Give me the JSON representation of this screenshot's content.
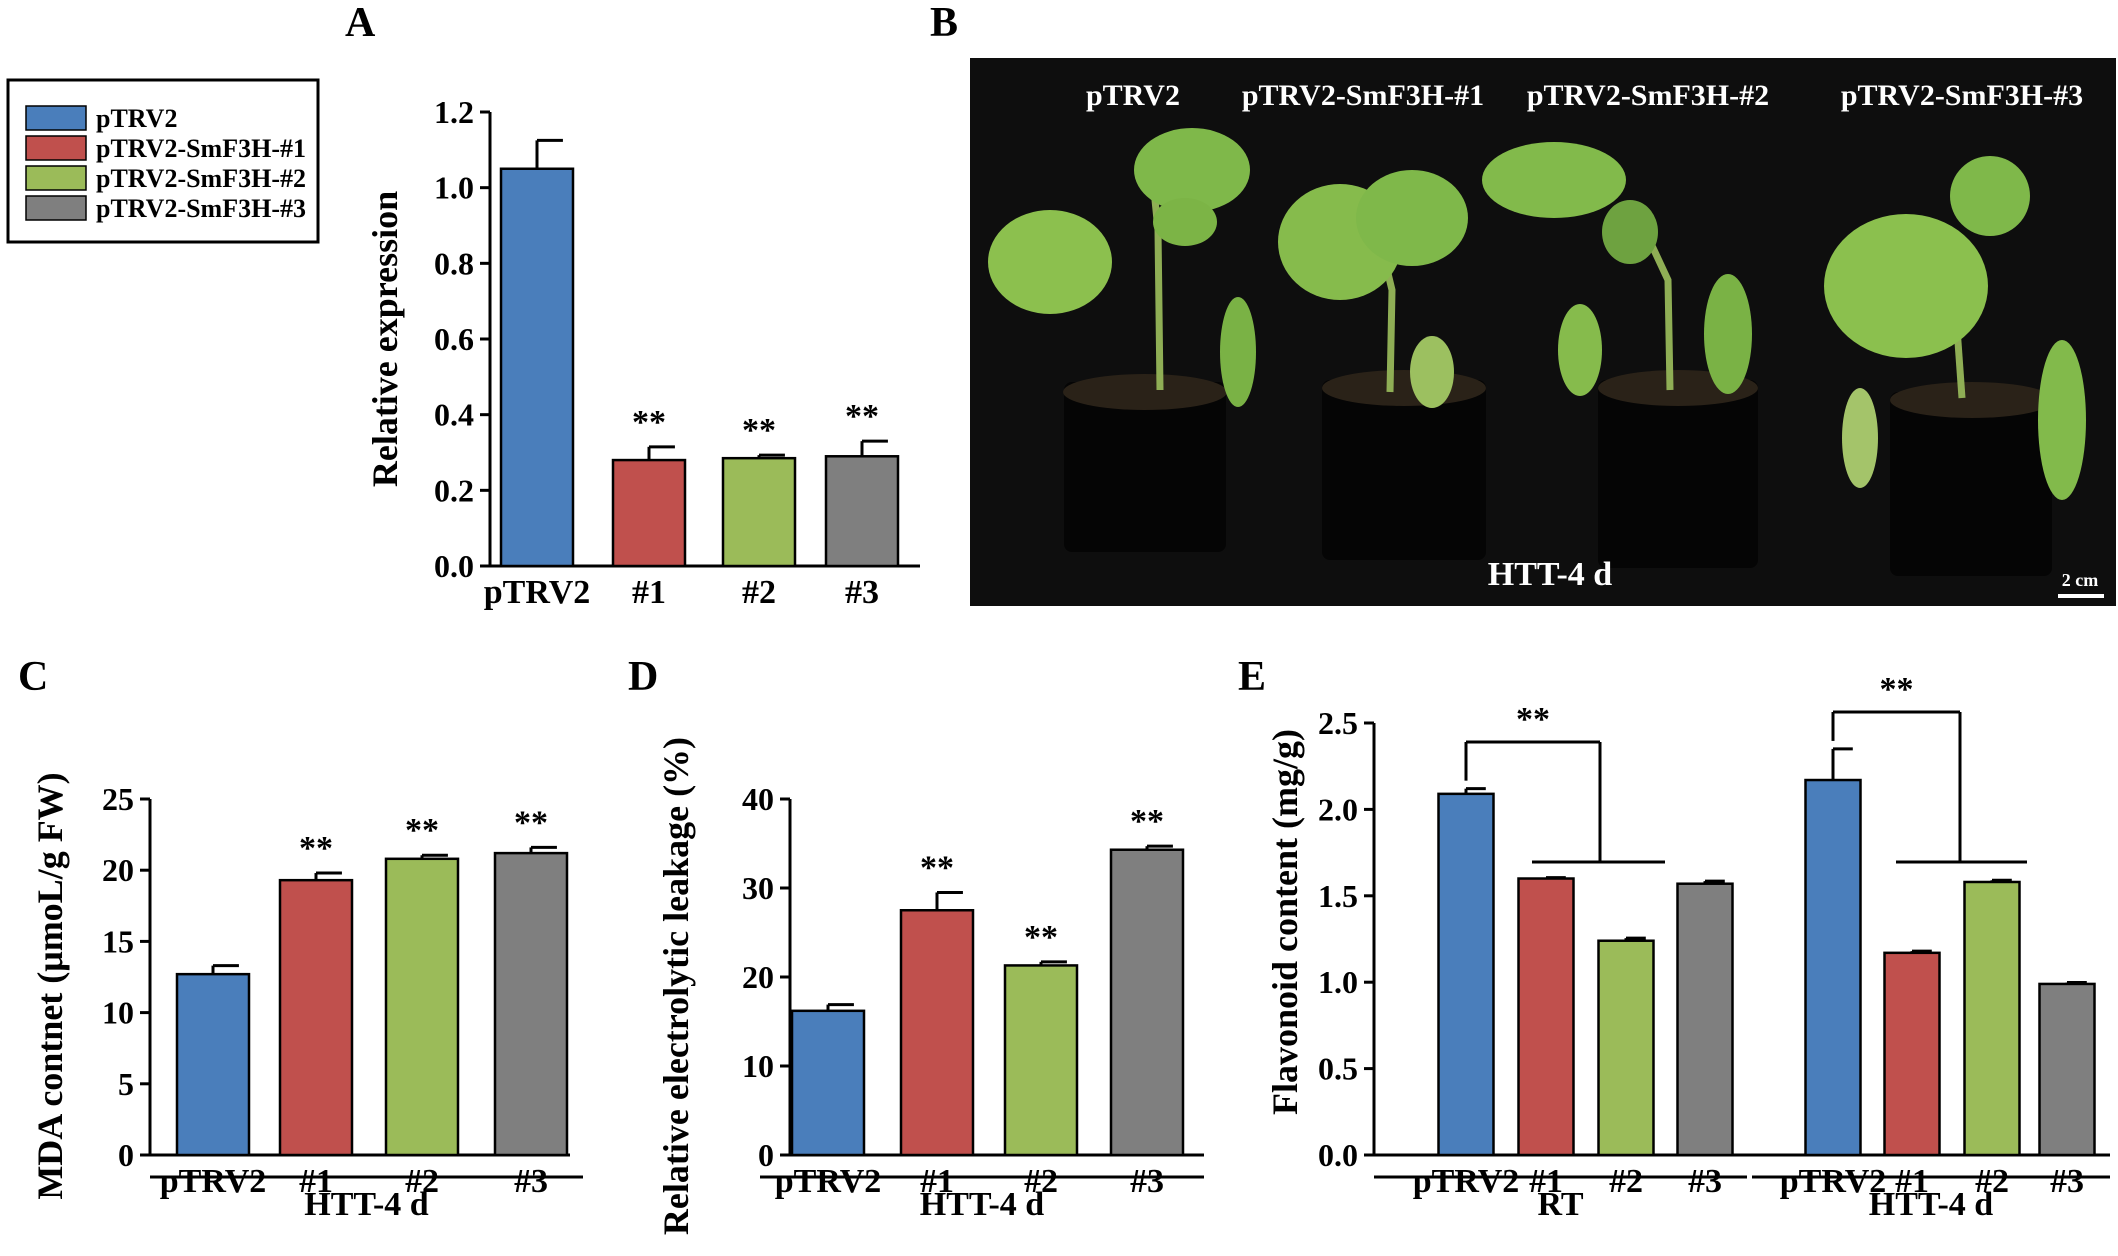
{
  "figure": {
    "legend": {
      "entries": [
        {
          "label": "pTRV2",
          "color": "#4a7ebb"
        },
        {
          "label": "pTRV2-SmF3H-#1",
          "color": "#c0504d"
        },
        {
          "label": "pTRV2-SmF3H-#2",
          "color": "#9bbb59"
        },
        {
          "label": "pTRV2-SmF3H-#3",
          "color": "#7f7f7f"
        }
      ]
    },
    "photo": {
      "letter": "B",
      "labels": [
        "pTRV2",
        "pTRV2-SmF3H-#1",
        "pTRV2-SmF3H-#2",
        "pTRV2-SmF3H-#3"
      ],
      "condition": "HTT-4 d",
      "scale_bar": "2 cm"
    }
  },
  "chart_data": [
    {
      "id": "A",
      "letter": "A",
      "type": "bar",
      "ylabel": "Relative expression",
      "ylim": [
        0,
        1.2
      ],
      "yticks": [
        "0.0",
        "0.2",
        "0.4",
        "0.6",
        "0.8",
        "1.0",
        "1.2"
      ],
      "categories": [
        "pTRV2",
        "#1",
        "#2",
        "#3"
      ],
      "values": [
        1.05,
        0.28,
        0.285,
        0.29
      ],
      "errors": [
        0.075,
        0.035,
        0.008,
        0.04
      ],
      "colors": [
        "#4a7ebb",
        "#c0504d",
        "#9bbb59",
        "#7f7f7f"
      ],
      "significance": [
        "",
        "**",
        "**",
        "**"
      ]
    },
    {
      "id": "C",
      "letter": "C",
      "type": "bar",
      "ylabel": "MDA contnet (μmoL/g FW)",
      "ylim": [
        0,
        25
      ],
      "yticks": [
        "0",
        "5",
        "10",
        "15",
        "20",
        "25"
      ],
      "categories": [
        "pTRV2",
        "#1",
        "#2",
        "#3"
      ],
      "values": [
        12.7,
        19.3,
        20.8,
        21.2
      ],
      "errors": [
        0.6,
        0.5,
        0.25,
        0.4
      ],
      "colors": [
        "#4a7ebb",
        "#c0504d",
        "#9bbb59",
        "#7f7f7f"
      ],
      "significance": [
        "",
        "**",
        "**",
        "**"
      ],
      "group_labels": [
        "HTT-4 d"
      ]
    },
    {
      "id": "D",
      "letter": "D",
      "type": "bar",
      "ylabel": "Relative electrolytic leakage (%)",
      "ylim": [
        0,
        40
      ],
      "yticks": [
        "0",
        "10",
        "20",
        "30",
        "40"
      ],
      "categories": [
        "pTRV2",
        "#1",
        "#2",
        "#3"
      ],
      "values": [
        16.2,
        27.5,
        21.3,
        34.3
      ],
      "errors": [
        0.7,
        2.0,
        0.4,
        0.4
      ],
      "colors": [
        "#4a7ebb",
        "#c0504d",
        "#9bbb59",
        "#7f7f7f"
      ],
      "significance": [
        "",
        "**",
        "**",
        "**"
      ],
      "group_labels": [
        "HTT-4 d"
      ]
    },
    {
      "id": "E",
      "letter": "E",
      "type": "bar",
      "ylabel": "Flavonoid content (mg/g)",
      "ylim": [
        0,
        2.5
      ],
      "yticks": [
        "0.0",
        "0.5",
        "1.0",
        "1.5",
        "2.0",
        "2.5"
      ],
      "categories": [
        "pTRV2",
        "#1",
        "#2",
        "#3",
        "pTRV2",
        "#1",
        "#2",
        "#3"
      ],
      "values": [
        2.09,
        1.6,
        1.24,
        1.57,
        2.17,
        1.17,
        1.58,
        0.99
      ],
      "errors": [
        0.03,
        0.005,
        0.015,
        0.015,
        0.18,
        0.01,
        0.01,
        0.008
      ],
      "colors": [
        "#4a7ebb",
        "#c0504d",
        "#9bbb59",
        "#7f7f7f",
        "#4a7ebb",
        "#c0504d",
        "#9bbb59",
        "#7f7f7f"
      ],
      "group_labels": [
        "RT",
        "HTT-4 d"
      ],
      "group_significance": [
        "**",
        "**"
      ]
    }
  ]
}
